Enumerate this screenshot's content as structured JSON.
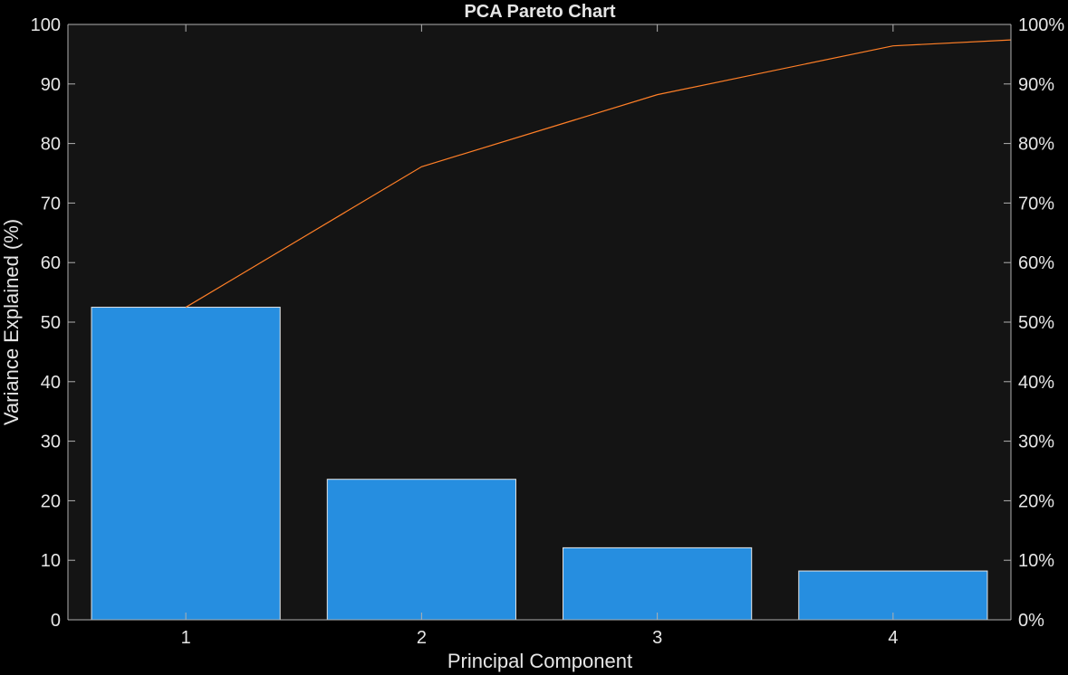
{
  "chart_data": {
    "type": "bar",
    "title": "PCA Pareto Chart",
    "xlabel": "Principal Component",
    "ylabel": "Variance Explained (%)",
    "categories": [
      "1",
      "2",
      "3",
      "4"
    ],
    "values": [
      52.5,
      23.6,
      12.1,
      8.2
    ],
    "cumulative": [
      52.5,
      76.1,
      88.2,
      96.4,
      97.4
    ],
    "cumulative_x": [
      1,
      2,
      3,
      4,
      4.5
    ],
    "ylim": [
      0,
      100
    ],
    "y_ticks": [
      0,
      10,
      20,
      30,
      40,
      50,
      60,
      70,
      80,
      90,
      100
    ],
    "y2_ticks": [
      "0%",
      "10%",
      "20%",
      "30%",
      "40%",
      "50%",
      "60%",
      "70%",
      "80%",
      "90%",
      "100%"
    ],
    "xlim": [
      0.5,
      4.5
    ],
    "grid": false,
    "colors": {
      "background": "#000000",
      "plot_background": "#141414",
      "bar_fill": "#268ee0",
      "bar_edge": "#e6e6e6",
      "line": "#ff7f27",
      "axis": "#b0b0b0",
      "text": "#e6e6e6"
    }
  }
}
